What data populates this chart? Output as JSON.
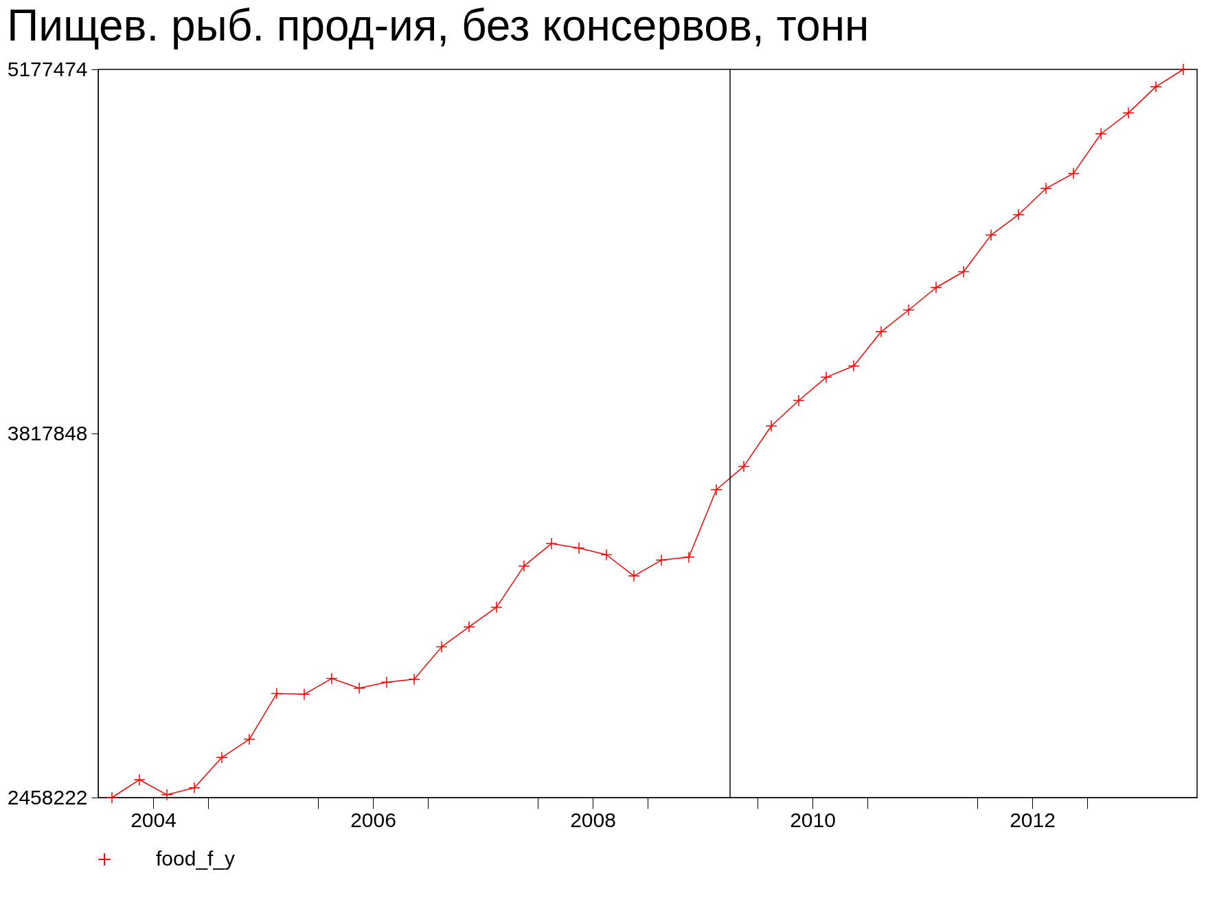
{
  "chart_data": {
    "type": "line",
    "title": "Пищев. рыб. прод-ия, без консервов, тонн",
    "x": [
      2004.125,
      2004.375,
      2004.625,
      2004.875,
      2005.125,
      2005.375,
      2005.625,
      2005.875,
      2006.125,
      2006.375,
      2006.625,
      2006.875,
      2007.125,
      2007.375,
      2007.625,
      2007.875,
      2008.125,
      2008.375,
      2008.625,
      2008.875,
      2009.125,
      2009.375,
      2009.625,
      2009.875,
      2010.125,
      2010.375,
      2010.625,
      2010.875,
      2011.125,
      2011.375,
      2011.625,
      2011.875,
      2012.125,
      2012.375,
      2012.625,
      2012.875,
      2013.125,
      2013.375,
      2013.625,
      2013.875
    ],
    "series": [
      {
        "name": "food_f_y",
        "color": "#ff0000",
        "values": [
          2458222,
          2525000,
          2469000,
          2495000,
          2608000,
          2676000,
          2847000,
          2844000,
          2903000,
          2867000,
          2889000,
          2900000,
          3021000,
          3096000,
          3169000,
          3323000,
          3407000,
          3390000,
          3365000,
          3286000,
          3345000,
          3356000,
          3608000,
          3695000,
          3846000,
          3941000,
          4028000,
          4070000,
          4198000,
          4279000,
          4363000,
          4422000,
          4559000,
          4635000,
          4733000,
          4789000,
          4937000,
          5015000,
          5113000,
          5177474
        ]
      }
    ],
    "xlim": [
      2004,
      2014
    ],
    "xticks": [
      {
        "value": 2004.5,
        "label": "2004"
      },
      {
        "value": 2006.5,
        "label": "2006"
      },
      {
        "value": 2008.5,
        "label": "2008"
      },
      {
        "value": 2010.5,
        "label": "2010"
      },
      {
        "value": 2012.5,
        "label": "2012"
      },
      {
        "value": 2005,
        "label": null
      },
      {
        "value": 2006,
        "label": null
      },
      {
        "value": 2007,
        "label": null
      },
      {
        "value": 2008,
        "label": null
      },
      {
        "value": 2009,
        "label": null
      },
      {
        "value": 2010,
        "label": null
      },
      {
        "value": 2011,
        "label": null
      },
      {
        "value": 2012,
        "label": null
      },
      {
        "value": 2013,
        "label": null
      }
    ],
    "ylim": [
      2458222,
      5177474
    ],
    "yticks": [
      2458222,
      3817848,
      5177474
    ],
    "ref_lines": [
      {
        "axis": "x",
        "value": 2009.75,
        "color": "#000000"
      }
    ],
    "grid": false,
    "legend": "bottom left",
    "marker": "cross",
    "line_style": "solid"
  }
}
